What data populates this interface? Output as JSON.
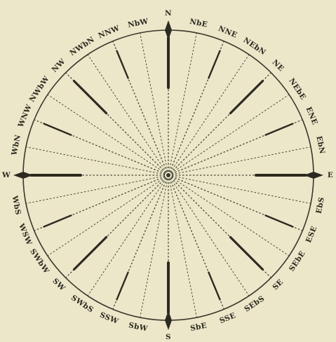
{
  "points": [
    {
      "label": "N"
    },
    {
      "label": "NbE"
    },
    {
      "label": "NNE"
    },
    {
      "label": "NEbN"
    },
    {
      "label": "NE"
    },
    {
      "label": "NEbE"
    },
    {
      "label": "ENE"
    },
    {
      "label": "EbN"
    },
    {
      "label": "E"
    },
    {
      "label": "EbS"
    },
    {
      "label": "ESE"
    },
    {
      "label": "SEbE"
    },
    {
      "label": "SE"
    },
    {
      "label": "SEbS"
    },
    {
      "label": "SSE"
    },
    {
      "label": "SbE"
    },
    {
      "label": "S"
    },
    {
      "label": "SbW"
    },
    {
      "label": "SSW"
    },
    {
      "label": "SWbS"
    },
    {
      "label": "SW"
    },
    {
      "label": "SWbW"
    },
    {
      "label": "WSW"
    },
    {
      "label": "WbS"
    },
    {
      "label": "W"
    },
    {
      "label": "WbN"
    },
    {
      "label": "WNW"
    },
    {
      "label": "NWbW"
    },
    {
      "label": "NW"
    },
    {
      "label": "NWbN"
    },
    {
      "label": "NNW"
    },
    {
      "label": "NbW"
    }
  ],
  "colors": {
    "background": "#ebe7c8",
    "ink": "#2c2a22",
    "dashed": "#4a473c"
  }
}
